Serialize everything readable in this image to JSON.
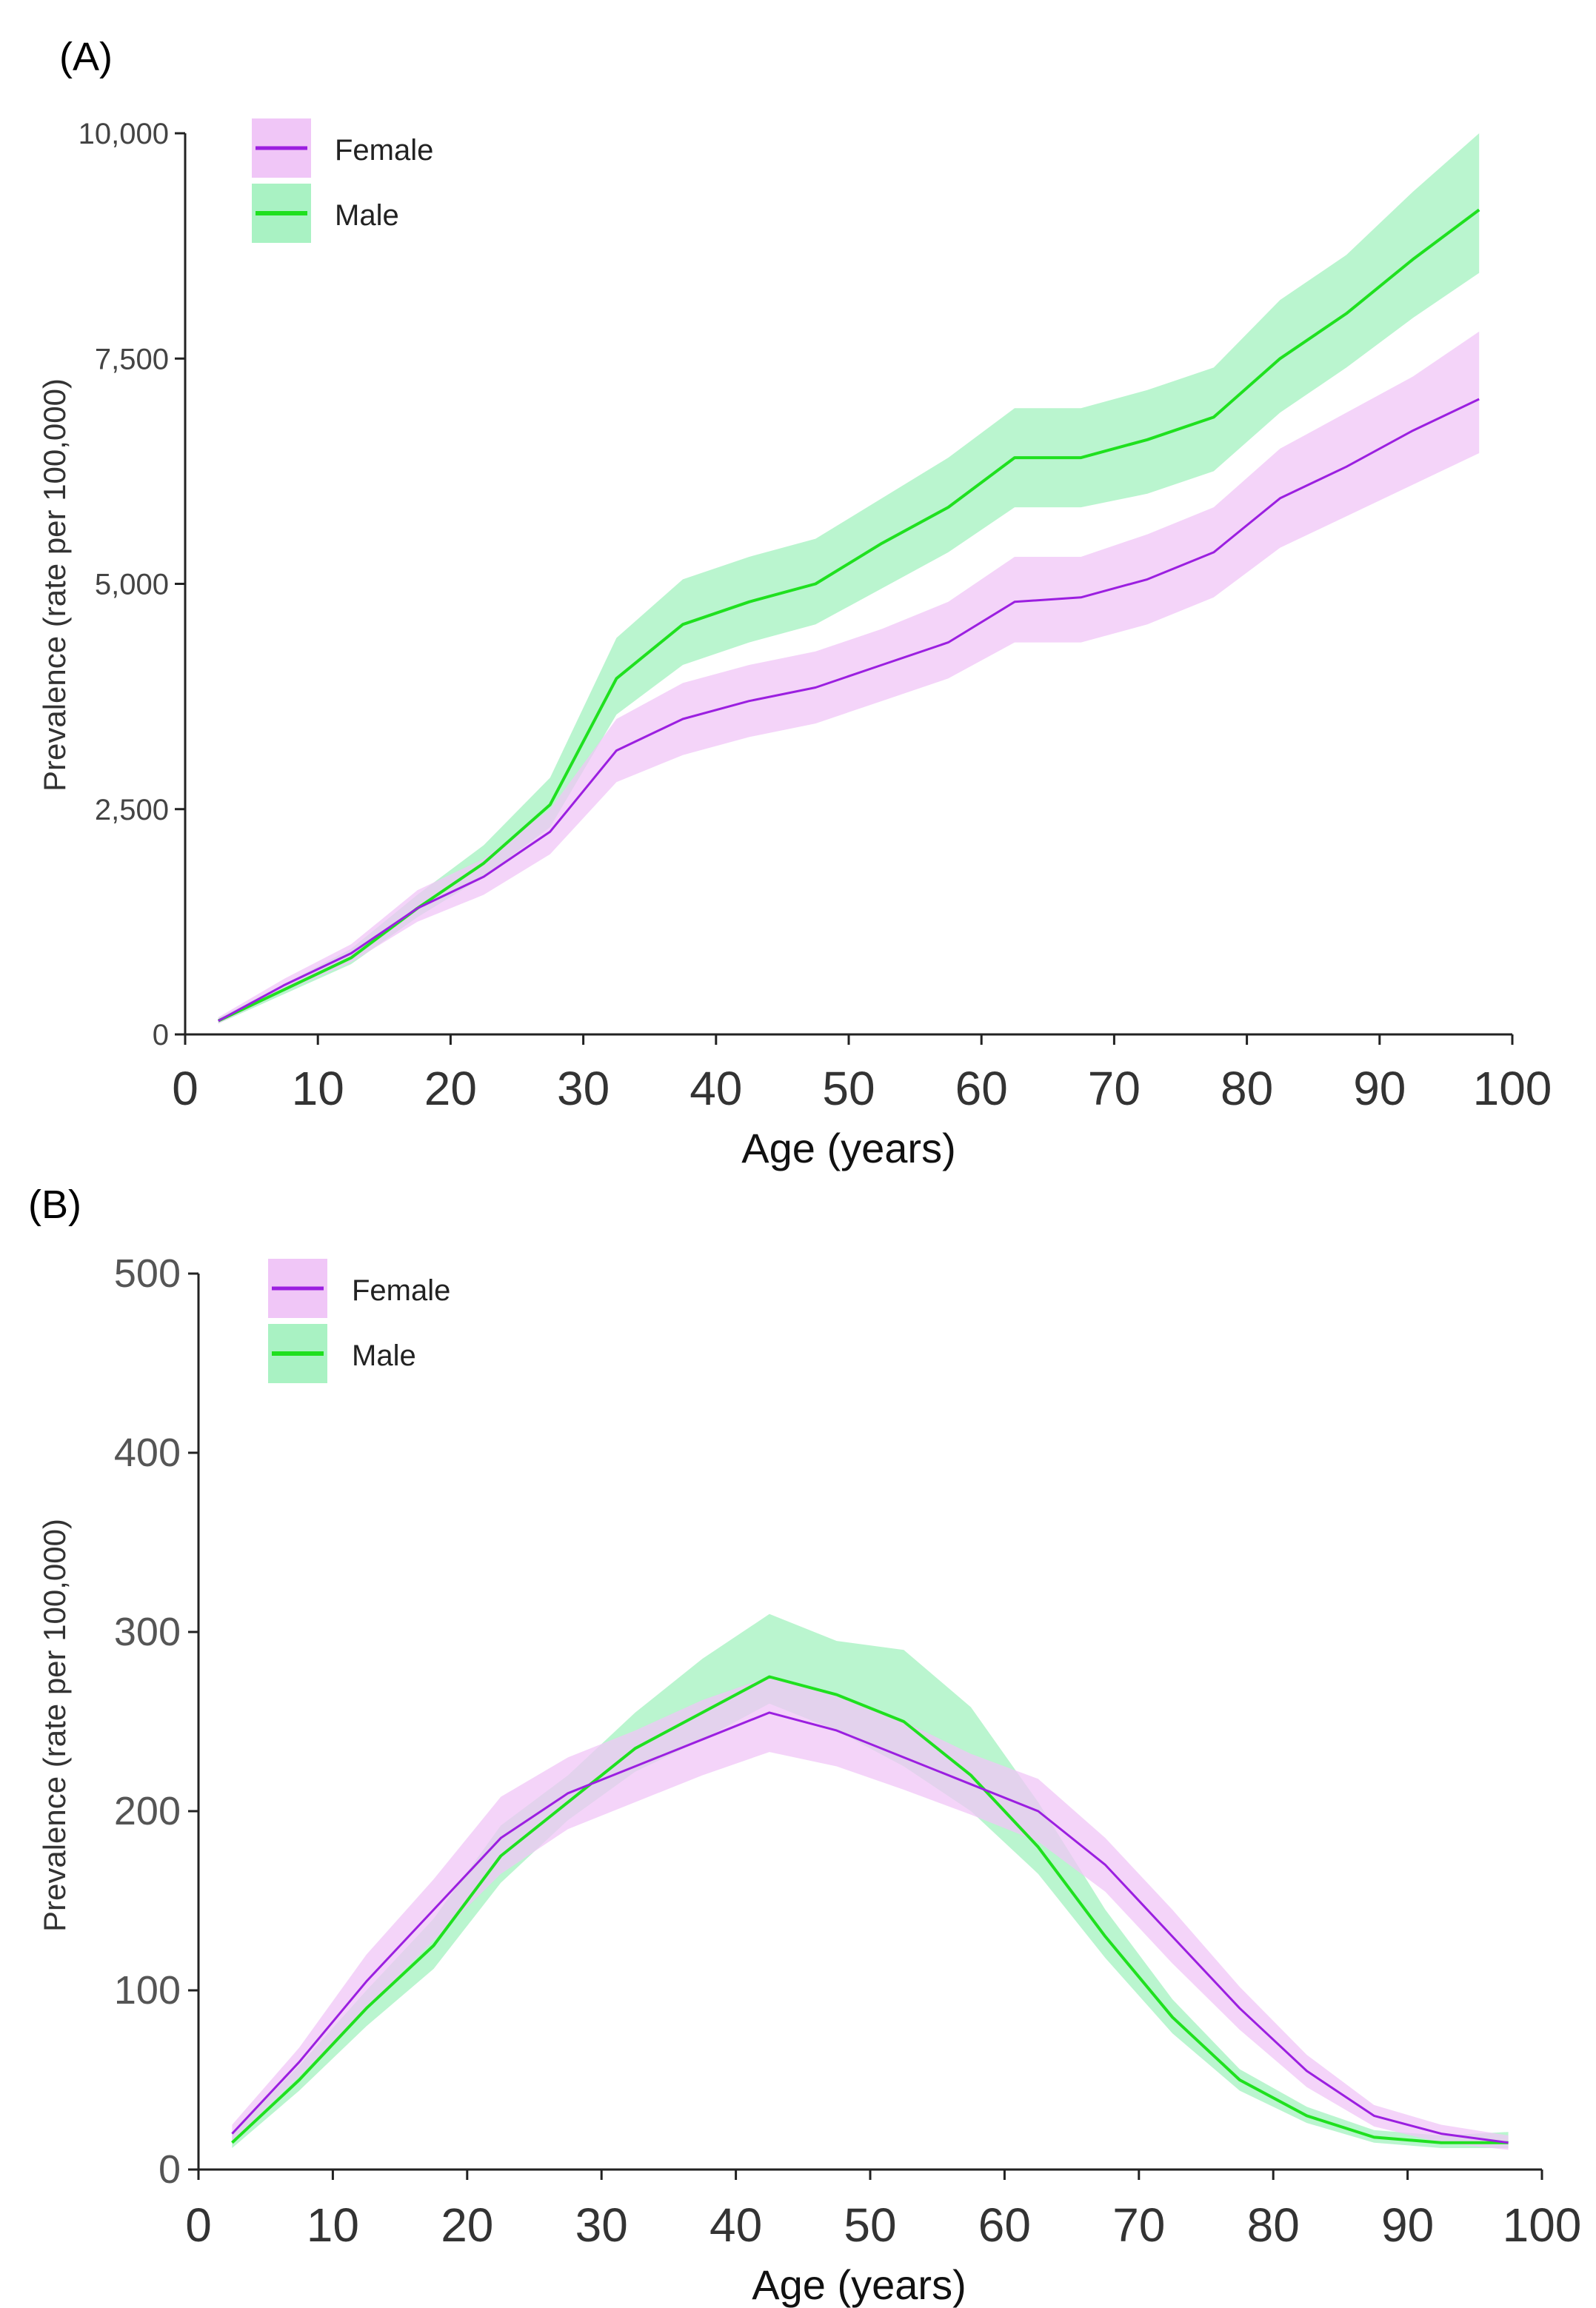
{
  "colors": {
    "female_line": "#9b1fe0",
    "female_band": "#f0c6f7",
    "male_line": "#1fe01f",
    "male_band": "#a9f2c3"
  },
  "chart_data": [
    {
      "panel_label": "(A)",
      "type": "line",
      "xlabel": "Age (years)",
      "ylabel": "Prevalence (rate per 100,000)",
      "xlim": [
        0,
        100
      ],
      "ylim": [
        0,
        10000
      ],
      "x_ticks": [
        0,
        10,
        20,
        30,
        40,
        50,
        60,
        70,
        80,
        90,
        100
      ],
      "x_tick_labels": [
        "0",
        "10",
        "20",
        "30",
        "40",
        "50",
        "60",
        "70",
        "80",
        "90",
        "100"
      ],
      "y_ticks": [
        0,
        2500,
        5000,
        7500,
        10000
      ],
      "y_tick_labels": [
        "0",
        "2,500",
        "5,000",
        "7,500",
        "10,000"
      ],
      "legend": {
        "position": "top-left",
        "entries": [
          "Female",
          "Male"
        ]
      },
      "x": [
        2.5,
        7.5,
        12.5,
        17.5,
        22.5,
        27.5,
        32.5,
        37.5,
        42.5,
        47.5,
        52.5,
        57.5,
        62.5,
        67.5,
        72.5,
        77.5,
        82.5,
        87.5,
        92.5,
        97.5
      ],
      "series": [
        {
          "name": "Female",
          "values": [
            150,
            550,
            900,
            1400,
            1750,
            2250,
            3150,
            3500,
            3700,
            3850,
            4100,
            4350,
            4800,
            4850,
            5050,
            5350,
            5950,
            6300,
            6700,
            7050
          ],
          "lower": [
            120,
            480,
            800,
            1250,
            1550,
            2000,
            2800,
            3100,
            3300,
            3450,
            3700,
            3950,
            4350,
            4350,
            4550,
            4850,
            5400,
            5750,
            6100,
            6450
          ],
          "upper": [
            190,
            620,
            1000,
            1600,
            1950,
            2500,
            3500,
            3900,
            4100,
            4250,
            4500,
            4800,
            5300,
            5300,
            5550,
            5850,
            6500,
            6900,
            7300,
            7800
          ]
        },
        {
          "name": "Male",
          "values": [
            150,
            500,
            850,
            1400,
            1900,
            2550,
            3950,
            4550,
            4800,
            5000,
            5450,
            5850,
            6400,
            6400,
            6600,
            6850,
            7500,
            8000,
            8600,
            9150
          ],
          "lower": [
            120,
            450,
            780,
            1300,
            1750,
            2300,
            3550,
            4100,
            4350,
            4550,
            4950,
            5350,
            5850,
            5850,
            6000,
            6250,
            6900,
            7400,
            7950,
            8450
          ],
          "upper": [
            180,
            560,
            950,
            1550,
            2100,
            2850,
            4400,
            5050,
            5300,
            5500,
            5950,
            6400,
            6950,
            6950,
            7150,
            7400,
            8150,
            8650,
            9350,
            10000
          ]
        }
      ]
    },
    {
      "panel_label": "(B)",
      "type": "line",
      "xlabel": "Age (years)",
      "ylabel": "Prevalence (rate per 100,000)",
      "xlim": [
        0,
        100
      ],
      "ylim": [
        0,
        500
      ],
      "x_ticks": [
        0,
        10,
        20,
        30,
        40,
        50,
        60,
        70,
        80,
        90,
        100
      ],
      "x_tick_labels": [
        "0",
        "10",
        "20",
        "30",
        "40",
        "50",
        "60",
        "70",
        "80",
        "90",
        "100"
      ],
      "y_ticks": [
        0,
        100,
        200,
        300,
        400,
        500
      ],
      "y_tick_labels": [
        "0",
        "100",
        "200",
        "300",
        "400",
        "500"
      ],
      "legend": {
        "position": "top-left",
        "entries": [
          "Female",
          "Male"
        ]
      },
      "x": [
        2.5,
        7.5,
        12.5,
        17.5,
        22.5,
        27.5,
        32.5,
        37.5,
        42.5,
        47.5,
        52.5,
        57.5,
        62.5,
        67.5,
        72.5,
        77.5,
        82.5,
        87.5,
        92.5,
        97.5
      ],
      "series": [
        {
          "name": "Female",
          "values": [
            20,
            60,
            105,
            145,
            185,
            210,
            225,
            240,
            255,
            245,
            230,
            215,
            200,
            170,
            130,
            90,
            55,
            30,
            20,
            15
          ],
          "lower": [
            16,
            52,
            90,
            128,
            165,
            190,
            205,
            220,
            233,
            225,
            212,
            198,
            183,
            155,
            115,
            78,
            46,
            24,
            15,
            11
          ],
          "upper": [
            25,
            68,
            120,
            162,
            208,
            230,
            245,
            262,
            275,
            265,
            250,
            232,
            218,
            185,
            145,
            102,
            64,
            36,
            25,
            19
          ]
        },
        {
          "name": "Male",
          "values": [
            15,
            50,
            90,
            125,
            175,
            205,
            235,
            255,
            275,
            265,
            250,
            220,
            180,
            130,
            85,
            50,
            30,
            18,
            15,
            15
          ],
          "lower": [
            12,
            44,
            80,
            112,
            160,
            195,
            222,
            240,
            260,
            245,
            225,
            200,
            165,
            118,
            76,
            44,
            26,
            15,
            12,
            12
          ],
          "upper": [
            20,
            58,
            100,
            140,
            192,
            220,
            255,
            285,
            310,
            295,
            290,
            258,
            205,
            145,
            95,
            56,
            35,
            22,
            19,
            21
          ]
        }
      ]
    }
  ]
}
